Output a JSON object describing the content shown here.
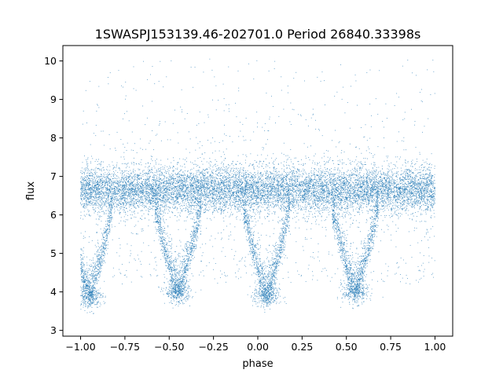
{
  "chart_data": {
    "type": "scatter",
    "title": "1SWASPJ153139.46-202701.0 Period 26840.33398s",
    "xlabel": "phase",
    "ylabel": "flux",
    "xlim": [
      -1.1,
      1.1
    ],
    "ylim": [
      2.85,
      10.4
    ],
    "xticks": [
      -1.0,
      -0.75,
      -0.5,
      -0.25,
      0.0,
      0.25,
      0.5,
      0.75,
      1.0
    ],
    "xtick_labels": [
      "−1.00",
      "−0.75",
      "−0.50",
      "−0.25",
      "0.00",
      "0.25",
      "0.50",
      "0.75",
      "1.00"
    ],
    "yticks": [
      3,
      4,
      5,
      6,
      7,
      8,
      9,
      10
    ],
    "ytick_labels": [
      "3",
      "4",
      "5",
      "6",
      "7",
      "8",
      "9",
      "10"
    ],
    "grid": false,
    "marker_color": "#1f77b4",
    "phase_range": [
      -1.0,
      1.0
    ],
    "baseline_flux": 6.65,
    "baseline_band": [
      6.0,
      7.4
    ],
    "eclipse_centers_phase": [
      -0.95,
      -0.45,
      0.05,
      0.55
    ],
    "eclipse_depth_flux": [
      3.9,
      4.0,
      3.9,
      4.0
    ],
    "eclipse_half_width_phase": 0.13,
    "outlier_max_flux": 10.05
  }
}
